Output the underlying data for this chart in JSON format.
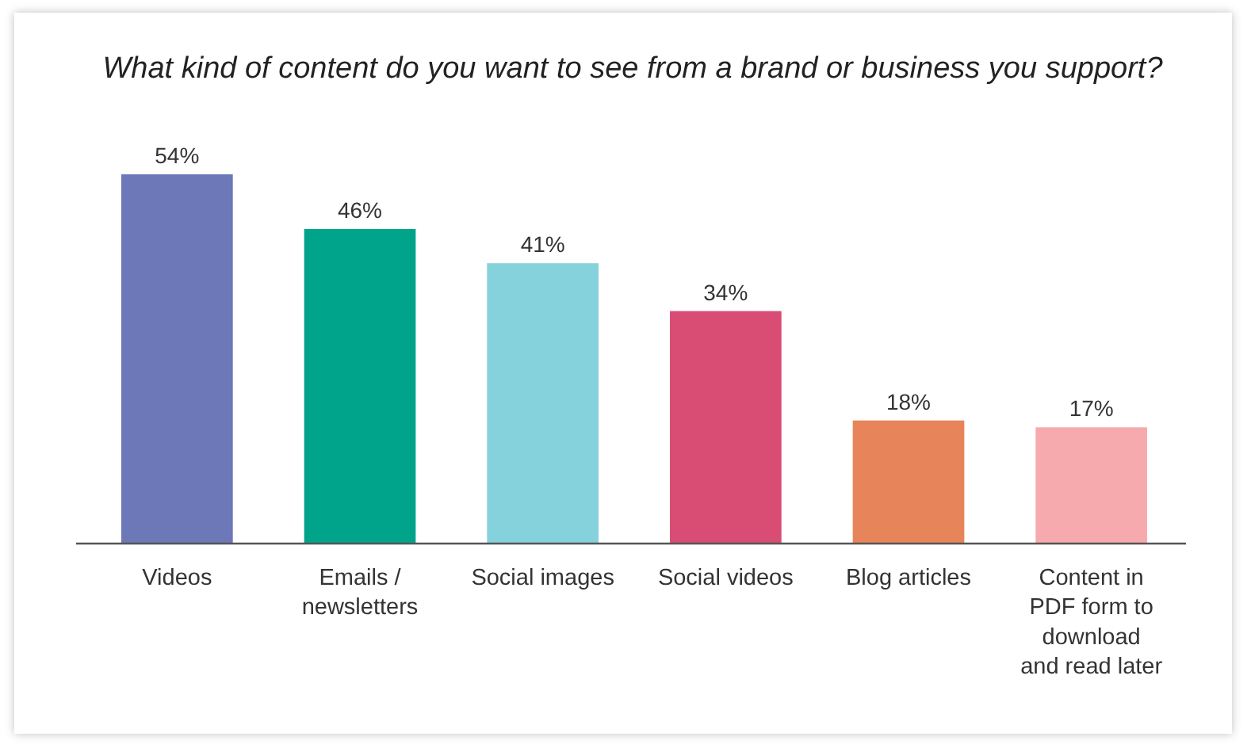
{
  "chart_data": {
    "type": "bar",
    "title": "What kind of content do you want to see from a brand or business you support?",
    "categories": [
      "Videos",
      "Emails /\nnewsletters",
      "Social images",
      "Social videos",
      "Blog articles",
      "Content in\nPDF form to\ndownload\nand read later"
    ],
    "values": [
      54,
      46,
      41,
      34,
      18,
      17
    ],
    "colors": [
      "#6d78b8",
      "#00a48b",
      "#85d2dd",
      "#d94c74",
      "#e8845a",
      "#f7aaae"
    ],
    "value_labels": [
      "54%",
      "46%",
      "41%",
      "34%",
      "18%",
      "17%"
    ]
  }
}
